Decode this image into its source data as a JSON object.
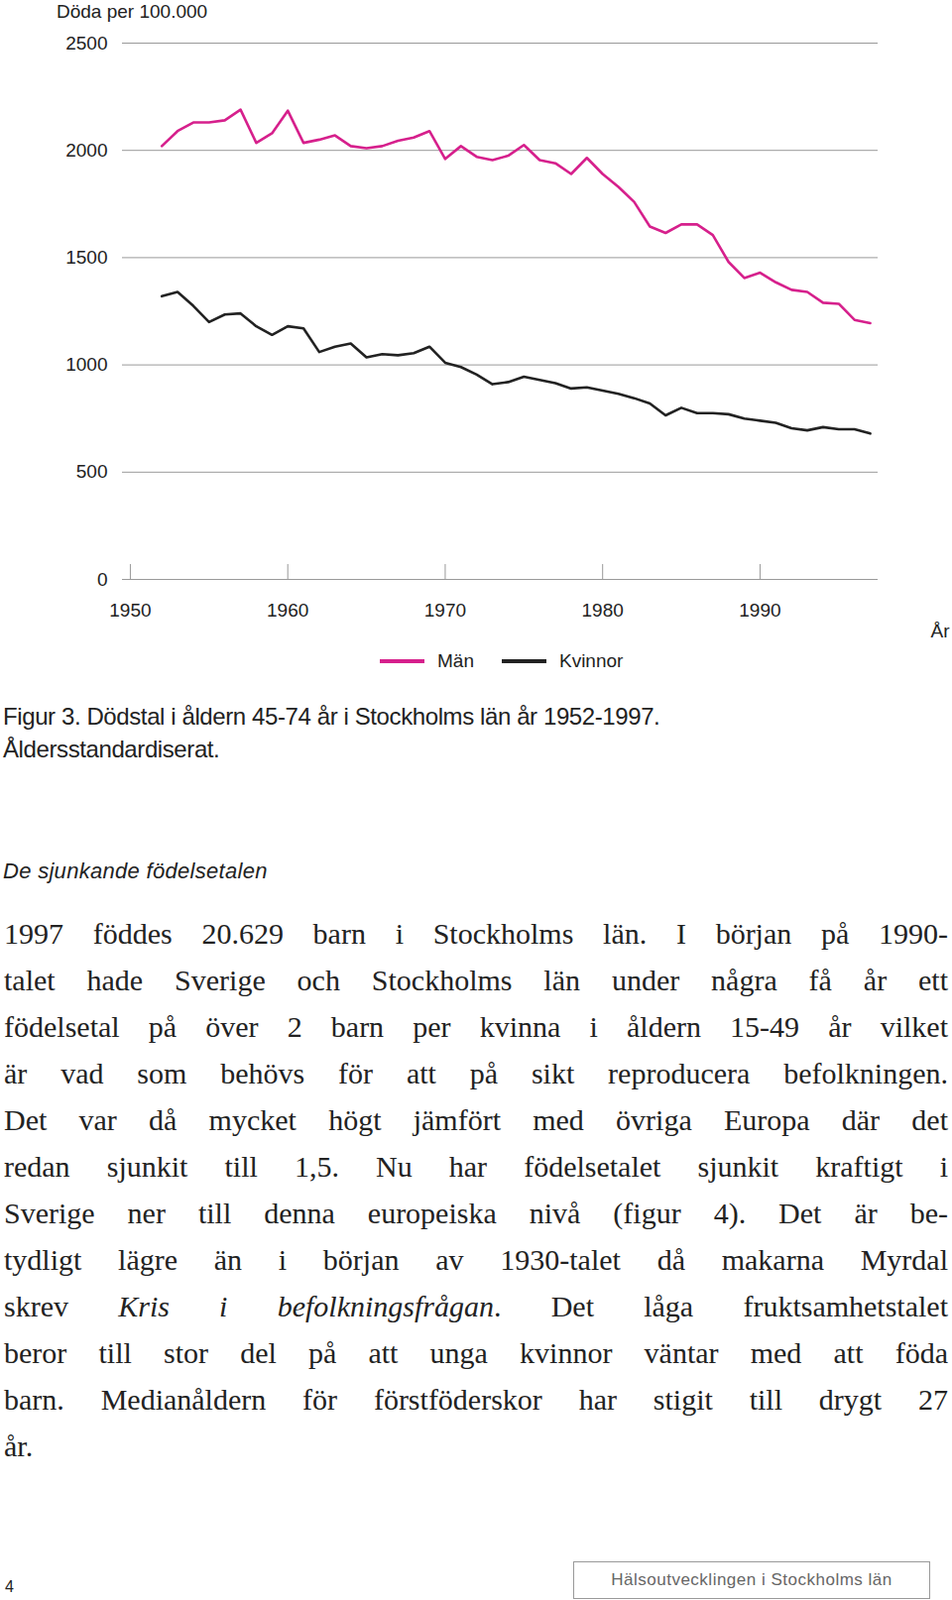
{
  "chart_data": {
    "type": "line",
    "y_label": "Döda per 100.000",
    "x_label": "År",
    "x": [
      1952,
      1953,
      1954,
      1955,
      1956,
      1957,
      1958,
      1959,
      1960,
      1961,
      1962,
      1963,
      1964,
      1965,
      1966,
      1967,
      1968,
      1969,
      1970,
      1971,
      1972,
      1973,
      1974,
      1975,
      1976,
      1977,
      1978,
      1979,
      1980,
      1981,
      1982,
      1983,
      1984,
      1985,
      1986,
      1987,
      1988,
      1989,
      1990,
      1991,
      1992,
      1993,
      1994,
      1995,
      1996,
      1997
    ],
    "series": [
      {
        "name": "Män",
        "color": "#d6208c",
        "values": [
          2020,
          2090,
          2130,
          2130,
          2140,
          2190,
          2035,
          2080,
          2185,
          2035,
          2050,
          2070,
          2020,
          2010,
          2020,
          2045,
          2060,
          2090,
          1960,
          2020,
          1970,
          1955,
          1975,
          2025,
          1955,
          1940,
          1890,
          1965,
          1890,
          1830,
          1760,
          1645,
          1615,
          1655,
          1655,
          1605,
          1480,
          1405,
          1430,
          1385,
          1350,
          1340,
          1290,
          1285,
          1210,
          1195
        ]
      },
      {
        "name": "Kvinnor",
        "color": "#222222",
        "values": [
          1320,
          1340,
          1275,
          1200,
          1235,
          1240,
          1180,
          1140,
          1180,
          1170,
          1060,
          1085,
          1100,
          1035,
          1050,
          1045,
          1055,
          1085,
          1010,
          990,
          955,
          910,
          920,
          945,
          930,
          915,
          890,
          895,
          880,
          865,
          845,
          820,
          765,
          800,
          775,
          775,
          770,
          750,
          740,
          730,
          705,
          695,
          710,
          700,
          700,
          680
        ]
      }
    ],
    "xlim": [
      1949.5,
      1997.5
    ],
    "xticks": [
      1950,
      1960,
      1970,
      1980,
      1990
    ],
    "ylim": [
      0,
      2500
    ],
    "yticks": [
      0,
      500,
      1000,
      1500,
      2000,
      2500
    ],
    "grid": true,
    "legend": "bottom"
  },
  "document": {
    "caption": {
      "number": "Figur 3.",
      "lines": [
        "Dödstal i åldern 45-74 år i Stockholms län år 1952-1997.",
        "Åldersstandardiserat."
      ]
    },
    "heading": "De sjunkande födelsetalen",
    "body_lines": [
      "1997 föddes 20.629 barn i Stockholms län. I början på 1990-",
      "talet hade Sverige och Stockholms län under några få år ett",
      "födelsetal på över 2 barn per kvinna i åldern 15-49 år vilket",
      "är vad som behövs för att på sikt reproducera befolkningen.",
      "Det var då mycket högt jämfört med övriga Europa där det",
      "redan sjunkit till 1,5. Nu har födelsetalet sjunkit kraftigt i",
      "Sverige ner till denna europeiska nivå (figur 4). Det är be-",
      "tydligt lägre än i början av 1930-talet då makarna Myrdal",
      {
        "segments": [
          {
            "text": "skrev "
          },
          {
            "text": "Kris i befolkningsfrågan",
            "italic": true
          },
          {
            "text": ". Det låga fruktsamhetstalet"
          }
        ]
      },
      "beror till stor del på att unga kvinnor väntar med att föda",
      "barn. Medianåldern för förstföderskor har stigit till drygt 27",
      "år."
    ],
    "page_number": 4,
    "footer": "Hälsoutvecklingen i Stockholms län"
  }
}
